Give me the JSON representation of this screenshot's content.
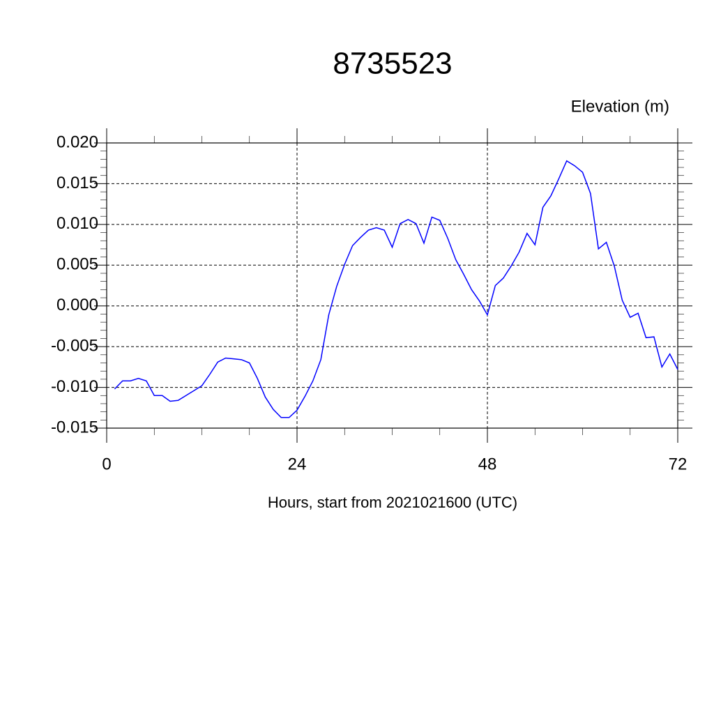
{
  "chart_data": {
    "type": "line",
    "title": "8735523",
    "subtitle": "Elevation (m)",
    "x_label": "Hours, start from 2021021600 (UTC)",
    "x": [
      1,
      2,
      3,
      4,
      5,
      6,
      7,
      8,
      9,
      10,
      11,
      12,
      13,
      14,
      15,
      16,
      17,
      18,
      19,
      20,
      21,
      22,
      23,
      24,
      25,
      26,
      27,
      28,
      29,
      30,
      31,
      32,
      33,
      34,
      35,
      36,
      37,
      38,
      39,
      40,
      41,
      42,
      43,
      44,
      45,
      46,
      47,
      48,
      49,
      50,
      51,
      52,
      53,
      54,
      55,
      56,
      57,
      58,
      59,
      60,
      61,
      62,
      63,
      64,
      65,
      66,
      67,
      68,
      69,
      70,
      71,
      72
    ],
    "series": [
      {
        "color": "#0000ff",
        "values": [
          -0.0102,
          -0.0092,
          -0.0092,
          -0.0089,
          -0.0092,
          -0.011,
          -0.011,
          -0.0117,
          -0.0116,
          -0.011,
          -0.0104,
          -0.0098,
          -0.0084,
          -0.0069,
          -0.0064,
          -0.0065,
          -0.0066,
          -0.007,
          -0.0089,
          -0.0112,
          -0.0127,
          -0.0137,
          -0.0137,
          -0.0128,
          -0.0111,
          -0.0092,
          -0.0066,
          -0.0011,
          0.0024,
          0.0051,
          0.0074,
          0.0084,
          0.0093,
          0.0096,
          0.0093,
          0.0072,
          0.0101,
          0.0106,
          0.0101,
          0.0077,
          0.0109,
          0.0105,
          0.0083,
          0.0057,
          0.0039,
          0.002,
          0.0006,
          -0.0011,
          0.0025,
          0.0034,
          0.0049,
          0.0066,
          0.0089,
          0.0075,
          0.0121,
          0.0135,
          0.0156,
          0.0178,
          0.0172,
          0.0164,
          0.0138,
          0.007,
          0.0078,
          0.0049,
          0.0007,
          -0.0014,
          -0.0009,
          -0.0039,
          -0.0038,
          -0.0075,
          -0.0059,
          -0.0078
        ]
      }
    ],
    "xlim": [
      0,
      72
    ],
    "xticks": [
      0,
      24,
      48,
      72
    ],
    "xminorticks": [
      6,
      12,
      18,
      30,
      36,
      42,
      54,
      60,
      66
    ],
    "ylim": [
      -0.015,
      0.02
    ],
    "yticks": [
      {
        "value": -0.015,
        "label": "-0.015"
      },
      {
        "value": -0.01,
        "label": "-0.010"
      },
      {
        "value": -0.005,
        "label": "-0.005"
      },
      {
        "value": 0,
        "label": "0.000"
      },
      {
        "value": 0.005,
        "label": "0.005"
      },
      {
        "value": 0.01,
        "label": "0.010"
      },
      {
        "value": 0.015,
        "label": "0.015"
      },
      {
        "value": 0.02,
        "label": "0.020"
      }
    ],
    "yminorticks": [
      -0.014,
      -0.013,
      -0.012,
      -0.011,
      -0.009,
      -0.008,
      -0.007,
      -0.006,
      -0.004,
      -0.003,
      -0.002,
      -0.001,
      0.001,
      0.002,
      0.003,
      0.004,
      0.006,
      0.007,
      0.008,
      0.009,
      0.011,
      0.012,
      0.013,
      0.014,
      0.016,
      0.017,
      0.018,
      0.019
    ],
    "grid": true
  }
}
